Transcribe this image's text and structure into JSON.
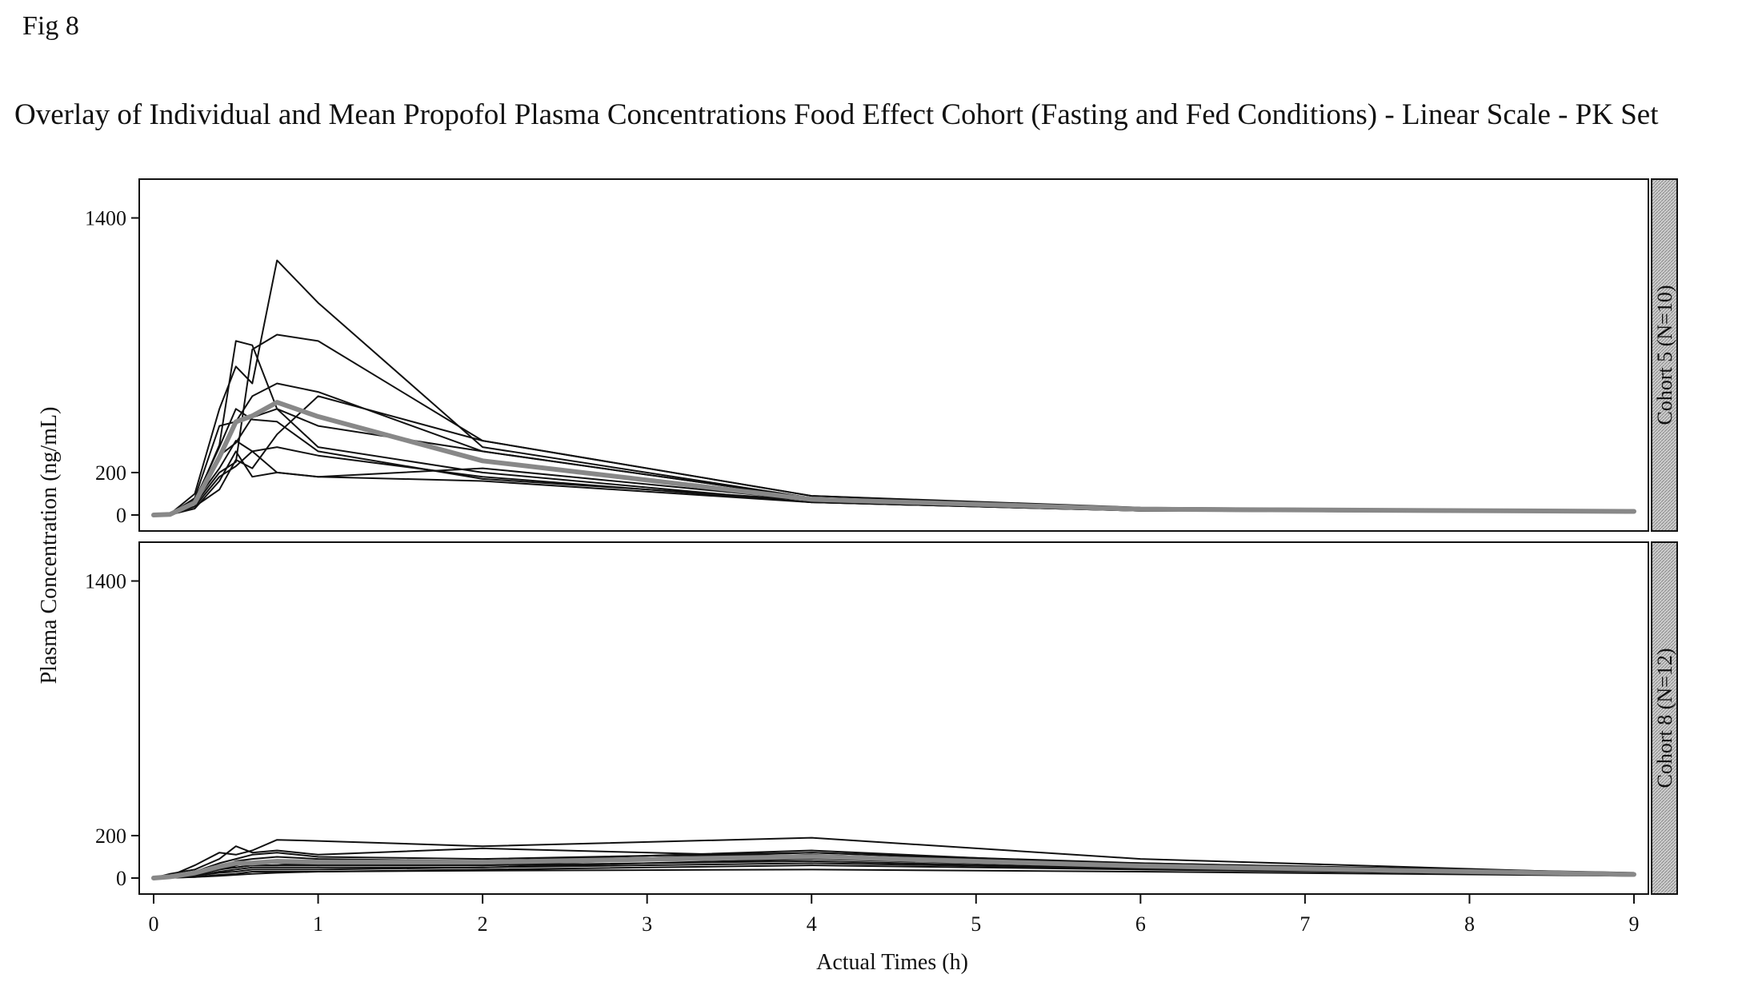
{
  "figure_label": "Fig 8",
  "chart_data": {
    "type": "line",
    "title": "Overlay of Individual and Mean Propofol Plasma Concentrations Food Effect Cohort (Fasting and Fed Conditions) - Linear Scale - PK Set",
    "xlabel": "Actual Times (h)",
    "ylabel": "Plasma Concentration (ng/mL)",
    "xlim": [
      0,
      9
    ],
    "ylim": [
      0,
      1500
    ],
    "x_ticks": [
      "0",
      "1",
      "2",
      "3",
      "4",
      "5",
      "6",
      "7",
      "8",
      "9"
    ],
    "y_ticks": [
      "0",
      "200",
      "1400"
    ],
    "grid": false,
    "legend": "none",
    "line_color": "#111111",
    "mean_color": "#888888",
    "panels": [
      {
        "label": "Cohort 5 (N=10)",
        "series": [
          {
            "x": [
              0,
              0.1,
              0.25,
              0.4,
              0.5,
              0.6,
              0.75,
              1,
              2,
              4,
              6,
              9
            ],
            "y": [
              0,
              2,
              60,
              330,
              820,
              800,
              500,
              420,
              300,
              80,
              30,
              20
            ]
          },
          {
            "x": [
              0,
              0.1,
              0.25,
              0.4,
              0.5,
              0.6,
              0.75,
              1,
              2,
              4,
              6,
              9
            ],
            "y": [
              0,
              5,
              100,
              500,
              700,
              620,
              1200,
              1000,
              320,
              80,
              30,
              20
            ]
          },
          {
            "x": [
              0,
              0.1,
              0.25,
              0.4,
              0.5,
              0.6,
              0.75,
              1,
              2,
              4,
              6,
              9
            ],
            "y": [
              0,
              2,
              50,
              200,
              250,
              780,
              850,
              820,
              350,
              90,
              35,
              20
            ]
          },
          {
            "x": [
              0,
              0.1,
              0.25,
              0.4,
              0.5,
              0.6,
              0.75,
              1,
              2,
              4,
              6,
              9
            ],
            "y": [
              0,
              3,
              80,
              420,
              440,
              560,
              620,
              580,
              300,
              80,
              30,
              20
            ]
          },
          {
            "x": [
              0,
              0.1,
              0.25,
              0.4,
              0.5,
              0.6,
              0.75,
              1,
              2,
              4,
              6,
              9
            ],
            "y": [
              0,
              2,
              40,
              120,
              260,
              220,
              380,
              560,
              350,
              90,
              30,
              18
            ]
          },
          {
            "x": [
              0,
              0.1,
              0.25,
              0.4,
              0.5,
              0.6,
              0.75,
              1,
              2,
              4,
              6,
              9
            ],
            "y": [
              0,
              1,
              30,
              160,
              300,
              180,
              200,
              180,
              220,
              70,
              25,
              15
            ]
          },
          {
            "x": [
              0,
              0.1,
              0.25,
              0.4,
              0.5,
              0.6,
              0.75,
              1,
              2,
              4,
              6,
              9
            ],
            "y": [
              0,
              4,
              70,
              320,
              500,
              450,
              440,
              300,
              170,
              70,
              25,
              15
            ]
          },
          {
            "x": [
              0,
              0.1,
              0.25,
              0.4,
              0.5,
              0.6,
              0.75,
              1,
              2,
              4,
              6,
              9
            ],
            "y": [
              0,
              2,
              60,
              220,
              350,
              300,
              200,
              180,
              160,
              60,
              20,
              15
            ]
          },
          {
            "x": [
              0,
              0.1,
              0.25,
              0.4,
              0.5,
              0.6,
              0.75,
              1,
              2,
              4,
              6,
              9
            ],
            "y": [
              0,
              3,
              50,
              280,
              340,
              460,
              500,
              320,
              200,
              60,
              20,
              12
            ]
          },
          {
            "x": [
              0,
              0.1,
              0.25,
              0.4,
              0.5,
              0.6,
              0.75,
              1,
              2,
              4,
              6,
              9
            ],
            "y": [
              0,
              2,
              40,
              180,
              230,
              300,
              320,
              280,
              180,
              60,
              20,
              12
            ]
          }
        ],
        "mean": {
          "x": [
            0,
            0.1,
            0.25,
            0.4,
            0.5,
            0.6,
            0.75,
            1,
            2,
            4,
            6,
            9
          ],
          "y": [
            0,
            3,
            58,
            273,
            439,
            467,
            531,
            464,
            255,
            74,
            27,
            17
          ]
        }
      },
      {
        "label": "Cohort 8 (N=12)",
        "series": [
          {
            "x": [
              0,
              0.1,
              0.25,
              0.4,
              0.5,
              0.6,
              0.75,
              1,
              2,
              4,
              6,
              9
            ],
            "y": [
              0,
              10,
              60,
              120,
              110,
              130,
              180,
              175,
              150,
              190,
              90,
              20
            ]
          },
          {
            "x": [
              0,
              0.1,
              0.25,
              0.4,
              0.5,
              0.6,
              0.75,
              1,
              2,
              4,
              6,
              9
            ],
            "y": [
              0,
              20,
              40,
              90,
              150,
              120,
              130,
              110,
              140,
              100,
              70,
              25
            ]
          },
          {
            "x": [
              0,
              0.1,
              0.25,
              0.4,
              0.5,
              0.6,
              0.75,
              1,
              2,
              4,
              6,
              9
            ],
            "y": [
              0,
              10,
              30,
              70,
              90,
              110,
              120,
              100,
              90,
              120,
              70,
              20
            ]
          },
          {
            "x": [
              0,
              0.1,
              0.25,
              0.4,
              0.5,
              0.6,
              0.75,
              1,
              2,
              4,
              6,
              9
            ],
            "y": [
              0,
              5,
              20,
              50,
              80,
              90,
              100,
              90,
              80,
              130,
              60,
              20
            ]
          },
          {
            "x": [
              0,
              0.1,
              0.25,
              0.4,
              0.5,
              0.6,
              0.75,
              1,
              2,
              4,
              6,
              9
            ],
            "y": [
              0,
              5,
              20,
              60,
              70,
              70,
              80,
              80,
              70,
              120,
              60,
              20
            ]
          },
          {
            "x": [
              0,
              0.1,
              0.25,
              0.4,
              0.5,
              0.6,
              0.75,
              1,
              2,
              4,
              6,
              9
            ],
            "y": [
              0,
              3,
              15,
              40,
              60,
              70,
              70,
              60,
              60,
              110,
              55,
              18
            ]
          },
          {
            "x": [
              0,
              0.1,
              0.25,
              0.4,
              0.5,
              0.6,
              0.75,
              1,
              2,
              4,
              6,
              9
            ],
            "y": [
              0,
              5,
              20,
              60,
              50,
              60,
              60,
              60,
              80,
              100,
              50,
              18
            ]
          },
          {
            "x": [
              0,
              0.1,
              0.25,
              0.4,
              0.5,
              0.6,
              0.75,
              1,
              2,
              4,
              6,
              9
            ],
            "y": [
              0,
              2,
              10,
              30,
              40,
              50,
              50,
              50,
              50,
              90,
              50,
              15
            ]
          },
          {
            "x": [
              0,
              0.1,
              0.25,
              0.4,
              0.5,
              0.6,
              0.75,
              1,
              2,
              4,
              6,
              9
            ],
            "y": [
              0,
              3,
              15,
              40,
              50,
              60,
              60,
              70,
              60,
              80,
              45,
              15
            ]
          },
          {
            "x": [
              0,
              0.1,
              0.25,
              0.4,
              0.5,
              0.6,
              0.75,
              1,
              2,
              4,
              6,
              9
            ],
            "y": [
              0,
              2,
              5,
              15,
              20,
              30,
              30,
              30,
              40,
              60,
              40,
              15
            ]
          },
          {
            "x": [
              0,
              0.1,
              0.25,
              0.4,
              0.5,
              0.6,
              0.75,
              1,
              2,
              4,
              6,
              9
            ],
            "y": [
              0,
              2,
              10,
              25,
              30,
              40,
              40,
              40,
              50,
              70,
              45,
              15
            ]
          },
          {
            "x": [
              0,
              0.1,
              0.25,
              0.4,
              0.5,
              0.6,
              0.75,
              1,
              2,
              4,
              6,
              9
            ],
            "y": [
              0,
              1,
              5,
              10,
              15,
              20,
              25,
              30,
              35,
              40,
              30,
              10
            ]
          }
        ],
        "mean": {
          "x": [
            0,
            0.1,
            0.25,
            0.4,
            0.5,
            0.6,
            0.75,
            1,
            2,
            4,
            6,
            9
          ],
          "y": [
            0,
            6,
            24,
            54,
            70,
            71,
            79,
            75,
            75,
            101,
            57,
            17
          ]
        }
      }
    ]
  }
}
